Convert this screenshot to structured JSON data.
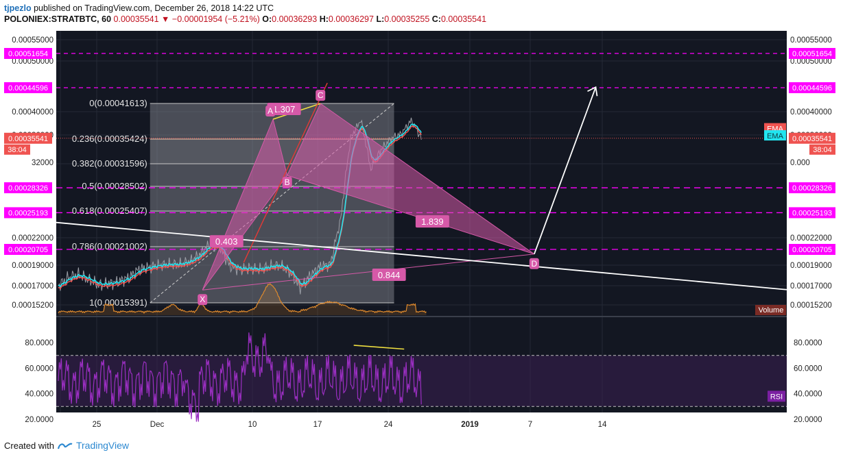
{
  "header": {
    "user": "tjpezlo",
    "published_text": "published on TradingView.com, December 26, 2018 14:22 UTC",
    "symbol_line": "POLONIEX:STRATBTC, 60",
    "last_price": "0.00035541",
    "change": "−0.00001954 (−5.21%)",
    "o_label": "O:",
    "o_value": "0.00036293",
    "h_label": "H:",
    "h_value": "0.00036297",
    "l_label": "L:",
    "l_value": "0.00035255",
    "c_label": "C:",
    "c_value": "0.00035541"
  },
  "footer": {
    "created_with": "Created with",
    "brand": "TradingView"
  },
  "colors": {
    "background": "#131722",
    "magenta": "#ff00ff",
    "price_red": "#ef5350",
    "ema_cyan": "#22e5f0",
    "fib_gray": "#c7c7c7",
    "pattern_pink": "#d659a8",
    "rsi_purple": "#9b2fc2",
    "volume_orange": "#e08a2c"
  },
  "chart_data": {
    "type": "line",
    "title": "",
    "price_axis": {
      "ticks": [
        "0.00055000",
        "0.00050000",
        "0.00040000",
        "0.00036000",
        "0.00032000",
        "0.00022000",
        "0.00019000",
        "0.00017000",
        "0.00015200"
      ],
      "right_ticks": [
        "0.00055000",
        "0.00050000",
        "0.00040000",
        "0.00036000",
        "0.00022000",
        "0.00019000",
        "0.00017000",
        "0.00015200"
      ],
      "highlight_levels": [
        "0.00051654",
        "0.00044596",
        "0.00028326",
        "0.00025193",
        "0.00020705"
      ],
      "current_price_label": "0.00035541",
      "countdown": "38:04",
      "partial_tick_left": "32000",
      "partial_tick_right": "0.000"
    },
    "x_axis": {
      "labels": [
        "25",
        "Dec",
        "10",
        "17",
        "24",
        "2019",
        "7",
        "14"
      ]
    },
    "fibonacci": [
      {
        "ratio": "0",
        "label": "0(0.00041613)",
        "value": 0.00041613
      },
      {
        "ratio": "0.236",
        "label": "0.236(0.00035424)",
        "value": 0.00035424
      },
      {
        "ratio": "0.382",
        "label": "0.382(0.00031596)",
        "value": 0.00031596
      },
      {
        "ratio": "0.5",
        "label": "0.5(0.00028502)",
        "value": 0.00028502
      },
      {
        "ratio": "0.618",
        "label": "0.618(0.00025407)",
        "value": 0.00025407
      },
      {
        "ratio": "0.786",
        "label": "0.786(0.00021002)",
        "value": 0.00021002
      },
      {
        "ratio": "1",
        "label": "1(0.00015391)",
        "value": 0.00015391
      }
    ],
    "pattern_points": [
      {
        "label": "X",
        "price": 0.000166
      },
      {
        "label": "A",
        "price": 0.000387
      },
      {
        "label": "B",
        "price": 0.0003
      },
      {
        "label": "C",
        "price": 0.000416
      },
      {
        "label": "D",
        "price": 0.000202
      }
    ],
    "pattern_ratios": [
      "1.307",
      "0.403",
      "1.839",
      "0.844"
    ],
    "indicator_tags": [
      "EMA",
      "EMA"
    ],
    "volume_label": "Volume",
    "rsi": {
      "label": "RSI",
      "ticks": [
        "80.0000",
        "60.0000",
        "40.0000",
        "20.0000"
      ],
      "upper_band": 70,
      "lower_band": 30
    },
    "price_series": [
      [
        "Nov 20",
        0.00017
      ],
      [
        "Nov 21",
        0.000178
      ],
      [
        "Nov 22",
        0.000181
      ],
      [
        "Nov 23",
        0.000176
      ],
      [
        "Nov 24",
        0.000171
      ],
      [
        "Nov 25",
        0.000172
      ],
      [
        "Nov 26",
        0.000174
      ],
      [
        "Nov 27",
        0.000178
      ],
      [
        "Nov 28",
        0.000186
      ],
      [
        "Nov 29",
        0.000188
      ],
      [
        "Nov 30",
        0.00019
      ],
      [
        "Dec 1",
        0.000191
      ],
      [
        "Dec 2",
        0.000191
      ],
      [
        "Dec 3",
        0.000194
      ],
      [
        "Dec 4",
        0.000201
      ],
      [
        "Dec 5",
        0.000213
      ],
      [
        "Dec 6",
        0.00021
      ],
      [
        "Dec 7",
        0.000189
      ],
      [
        "Dec 8",
        0.000186
      ],
      [
        "Dec 9",
        0.000187
      ],
      [
        "Dec 10",
        0.000186
      ],
      [
        "Dec 11",
        0.000189
      ],
      [
        "Dec 12",
        0.00019
      ],
      [
        "Dec 13",
        0.000183
      ],
      [
        "Dec 14",
        0.000168
      ],
      [
        "Dec 15",
        0.00018
      ],
      [
        "Dec 16",
        0.000189
      ],
      [
        "Dec 17",
        0.000191
      ],
      [
        "Dec 18",
        0.000243
      ],
      [
        "Dec 19",
        0.000355
      ],
      [
        "Dec 20",
        0.000386
      ],
      [
        "Dec 21",
        0.000308
      ],
      [
        "Dec 22",
        0.000338
      ],
      [
        "Dec 23",
        0.000355
      ],
      [
        "Dec 24",
        0.000362
      ],
      [
        "Dec 25",
        0.000385
      ],
      [
        "Dec 26",
        0.000355
      ]
    ]
  }
}
